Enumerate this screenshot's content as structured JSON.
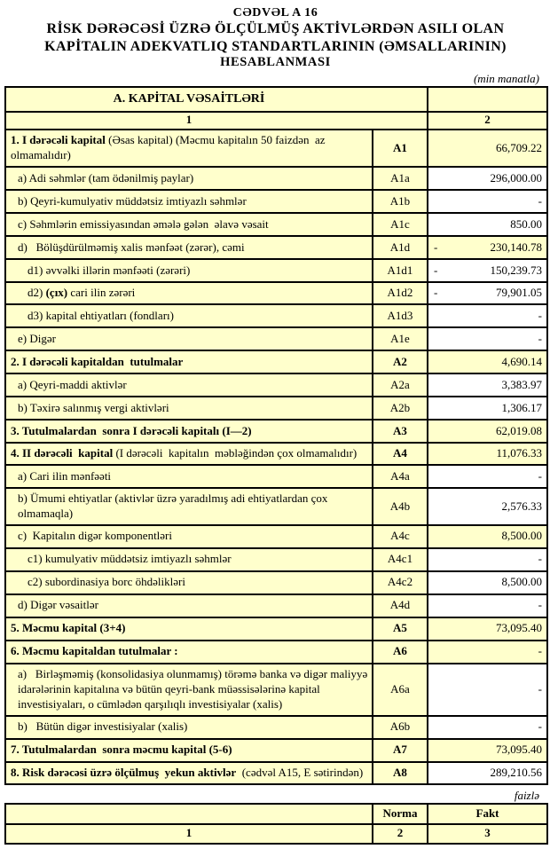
{
  "header": {
    "table_no": "CƏDVƏL A 16",
    "title_line1": "RİSK DƏRƏCƏSİ ÜZRƏ ÖLÇÜLMÜŞ AKTİVLƏRDƏN ASILI OLAN",
    "title_line2": "KAPİTALIN ADEKVATLIQ STANDARTLARININ (ƏMSALLARININ)",
    "title_line3": "HESABLANMASI",
    "unit_note": "(min manatla)"
  },
  "colors": {
    "cell_yellow": "#FFFFCC",
    "cell_white": "#FFFFFF",
    "border": "#000000"
  },
  "capital_table": {
    "section_title": "A. KAPİTAL VƏSAİTLƏRİ",
    "column_numbers": [
      "1",
      "2"
    ],
    "rows": [
      {
        "segments": [
          {
            "text": "1. I dərəcəli kapital",
            "bold": true
          },
          {
            "text": " (Əsas kapital) (Məcmu kapitalın 50 faizdən  az olmamalıdır)",
            "bold": false
          }
        ],
        "code": "A1",
        "code_bold": true,
        "minus": "",
        "value": "66,709.22",
        "value_bg": "yellow",
        "indent": 0
      },
      {
        "segments": [
          {
            "text": "a) Adi səhmlər (tam ödənilmiş paylar)",
            "bold": false
          }
        ],
        "code": "A1a",
        "code_bold": false,
        "minus": "",
        "value": "296,000.00",
        "value_bg": "white",
        "indent": 1
      },
      {
        "segments": [
          {
            "text": "b) Qeyri-kumulyativ müddətsiz imtiyazlı səhmlər",
            "bold": false
          }
        ],
        "code": "A1b",
        "code_bold": false,
        "minus": "",
        "value": "-",
        "value_bg": "white",
        "indent": 1
      },
      {
        "segments": [
          {
            "text": "c) Səhmlərin emissiyasından əmələ gələn  əlavə vəsait",
            "bold": false
          }
        ],
        "code": "A1c",
        "code_bold": false,
        "minus": "",
        "value": "850.00",
        "value_bg": "white",
        "indent": 1
      },
      {
        "segments": [
          {
            "text": "d)   Bölüşdürülməmiş xalis mənfəət (zərər), cəmi",
            "bold": false
          }
        ],
        "code": "A1d",
        "code_bold": false,
        "minus": "-",
        "value": "230,140.78",
        "value_bg": "yellow",
        "indent": 1
      },
      {
        "segments": [
          {
            "text": "d1) əvvəlki illərin mənfəəti (zərəri)",
            "bold": false
          }
        ],
        "code": "A1d1",
        "code_bold": false,
        "minus": "-",
        "value": "150,239.73",
        "value_bg": "white",
        "indent": 2
      },
      {
        "segments": [
          {
            "text": "d2) ",
            "bold": false
          },
          {
            "text": "(çıx)",
            "bold": true
          },
          {
            "text": " cari ilin zərəri",
            "bold": false
          }
        ],
        "code": "A1d2",
        "code_bold": false,
        "minus": "-",
        "value": "79,901.05",
        "value_bg": "white",
        "indent": 2
      },
      {
        "segments": [
          {
            "text": "d3) kapital ehtiyatları (fondları)",
            "bold": false
          }
        ],
        "code": "A1d3",
        "code_bold": false,
        "minus": "",
        "value": "-",
        "value_bg": "white",
        "indent": 2
      },
      {
        "segments": [
          {
            "text": "e) Digər",
            "bold": false
          }
        ],
        "code": "A1e",
        "code_bold": false,
        "minus": "",
        "value": "-",
        "value_bg": "white",
        "indent": 1
      },
      {
        "segments": [
          {
            "text": "2. I dərəcəli kapitaldan  tutulmalar",
            "bold": true
          }
        ],
        "code": "A2",
        "code_bold": true,
        "minus": "",
        "value": "4,690.14",
        "value_bg": "yellow",
        "indent": 0
      },
      {
        "segments": [
          {
            "text": "a) Qeyri-maddi aktivlər",
            "bold": false
          }
        ],
        "code": "A2a",
        "code_bold": false,
        "minus": "",
        "value": "3,383.97",
        "value_bg": "white",
        "indent": 1
      },
      {
        "segments": [
          {
            "text": "b) Təxirə salınmış vergi aktivləri",
            "bold": false
          }
        ],
        "code": "A2b",
        "code_bold": false,
        "minus": "",
        "value": "1,306.17",
        "value_bg": "white",
        "indent": 1
      },
      {
        "segments": [
          {
            "text": "3. Tutulmalardan  sonra I dərəcəli kapitalı (I—2)",
            "bold": true
          }
        ],
        "code": "A3",
        "code_bold": true,
        "minus": "",
        "value": "62,019.08",
        "value_bg": "yellow",
        "indent": 0
      },
      {
        "segments": [
          {
            "text": "4. II dərəcəli  kapital",
            "bold": true
          },
          {
            "text": " (I dərəcəli  kapitalın  məbləğindən çox olmamalıdır)",
            "bold": false
          }
        ],
        "code": "A4",
        "code_bold": true,
        "minus": "",
        "value": "11,076.33",
        "value_bg": "yellow",
        "indent": 0
      },
      {
        "segments": [
          {
            "text": "a) Cari ilin mənfəəti",
            "bold": false
          }
        ],
        "code": "A4a",
        "code_bold": false,
        "minus": "",
        "value": "-",
        "value_bg": "white",
        "indent": 1
      },
      {
        "segments": [
          {
            "text": "b) Ümumi ehtiyatlar (aktivlər üzrə yaradılmış adi ehtiyatlardan çox olmamaqla)",
            "bold": false
          }
        ],
        "code": "A4b",
        "code_bold": false,
        "minus": "",
        "value": "2,576.33",
        "value_bg": "white",
        "indent": 1
      },
      {
        "segments": [
          {
            "text": "c)  Kapitalın digər komponentləri",
            "bold": false
          }
        ],
        "code": "A4c",
        "code_bold": false,
        "minus": "",
        "value": "8,500.00",
        "value_bg": "yellow",
        "indent": 1
      },
      {
        "segments": [
          {
            "text": "c1) kumulyativ müddətsiz imtiyazlı səhmlər",
            "bold": false
          }
        ],
        "code": "A4c1",
        "code_bold": false,
        "minus": "",
        "value": "-",
        "value_bg": "white",
        "indent": 2
      },
      {
        "segments": [
          {
            "text": "c2) subordinasiya borc öhdəlikləri",
            "bold": false
          }
        ],
        "code": "A4c2",
        "code_bold": false,
        "minus": "",
        "value": "8,500.00",
        "value_bg": "white",
        "indent": 2
      },
      {
        "segments": [
          {
            "text": "d) Digər vəsaitlər",
            "bold": false
          }
        ],
        "code": "A4d",
        "code_bold": false,
        "minus": "",
        "value": "-",
        "value_bg": "white",
        "indent": 1
      },
      {
        "segments": [
          {
            "text": "5. Məcmu kapital (3+4)",
            "bold": true
          }
        ],
        "code": "A5",
        "code_bold": true,
        "minus": "",
        "value": "73,095.40",
        "value_bg": "yellow",
        "indent": 0
      },
      {
        "segments": [
          {
            "text": "6. Məcmu kapitaldan tutulmalar :",
            "bold": true
          }
        ],
        "code": "A6",
        "code_bold": true,
        "minus": "",
        "value": "-",
        "value_bg": "yellow",
        "indent": 0
      },
      {
        "segments": [
          {
            "text": "a)   Birləşməmiş (konsolidasiya olunmamış) törəmə banka və digər maliyyə idarələrinin kapitalına və bütün qeyri-bank müəssisələrinə kapital investisiyaları, o cümlədən qarşılıqlı investisiyalar (xalis)",
            "bold": false
          }
        ],
        "code": "A6a",
        "code_bold": false,
        "minus": "",
        "value": "-",
        "value_bg": "white",
        "indent": 1
      },
      {
        "segments": [
          {
            "text": "b)   Bütün digər investisiyalar (xalis)",
            "bold": false
          }
        ],
        "code": "A6b",
        "code_bold": false,
        "minus": "",
        "value": "-",
        "value_bg": "white",
        "indent": 1
      },
      {
        "segments": [
          {
            "text": "7. Tutulmalardan  sonra məcmu kapital (5-6)",
            "bold": true
          }
        ],
        "code": "A7",
        "code_bold": true,
        "minus": "",
        "value": "73,095.40",
        "value_bg": "yellow",
        "indent": 0
      },
      {
        "segments": [
          {
            "text": "8. Risk dərəcəsi üzrə ölçülmuş  yekun aktivlər",
            "bold": true
          },
          {
            "text": "  (cədvəl A15, E sətirindən)",
            "bold": false
          }
        ],
        "code": "A8",
        "code_bold": true,
        "minus": "",
        "value": "289,210.56",
        "value_bg": "white",
        "indent": 0
      }
    ]
  },
  "ratio_table": {
    "unit_note": "faizlə",
    "header_norma": "Norma",
    "header_fakt": "Fakt",
    "column_numbers": [
      "1",
      "2",
      "3"
    ]
  }
}
